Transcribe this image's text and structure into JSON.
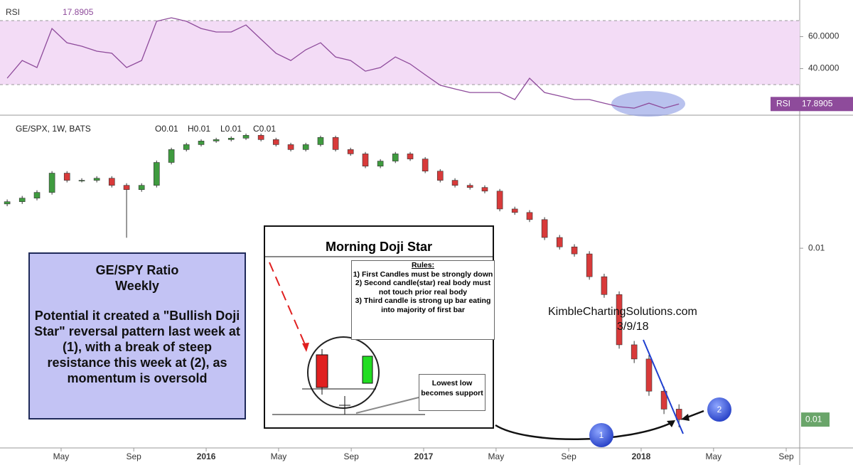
{
  "chart_data": [
    {
      "type": "line",
      "title": "RSI",
      "x": [
        2015.085,
        2015.154,
        2015.222,
        2015.291,
        2015.36,
        2015.428,
        2015.497,
        2015.566,
        2015.634,
        2015.703,
        2015.772,
        2015.84,
        2015.909,
        2015.977,
        2016.046,
        2016.115,
        2016.183,
        2016.252,
        2016.321,
        2016.389,
        2016.458,
        2016.526,
        2016.595,
        2016.664,
        2016.732,
        2016.801,
        2016.87,
        2016.938,
        2017.007,
        2017.076,
        2017.144,
        2017.213,
        2017.281,
        2017.35,
        2017.419,
        2017.487,
        2017.556,
        2017.625,
        2017.693,
        2017.762,
        2017.83,
        2017.899,
        2017.968,
        2018.036,
        2018.105,
        2018.174
      ],
      "series": [
        {
          "name": "RSI",
          "color": "#8e4b9b",
          "values": [
            34.0,
            45.1,
            40.7,
            65.1,
            56.2,
            54.0,
            50.9,
            49.6,
            40.7,
            45.1,
            69.6,
            71.8,
            69.6,
            65.1,
            62.9,
            62.9,
            67.3,
            58.4,
            49.6,
            45.1,
            51.8,
            56.2,
            47.3,
            45.1,
            38.4,
            40.7,
            47.3,
            42.9,
            36.2,
            29.6,
            27.3,
            25.1,
            25.1,
            25.1,
            20.7,
            34.0,
            25.1,
            22.9,
            20.7,
            20.7,
            18.4,
            16.2,
            15.3,
            18.4,
            15.3,
            17.8905
          ]
        }
      ],
      "xlim": [
        2015.052,
        2018.729
      ],
      "ylim": [
        11.8,
        82.9
      ],
      "yticks": [
        {
          "value": 60,
          "label": "60.0000"
        },
        {
          "value": 40,
          "label": "40.0000"
        }
      ],
      "bands": [
        30,
        70
      ],
      "band_color": "#f3dcf6"
    },
    {
      "type": "candlestick",
      "title": "GE/SPX, 1W, BATS",
      "legend_values": [
        "O0.01",
        "H0.01",
        "L0.01",
        "C0.01"
      ],
      "x": [
        2015.085,
        2015.154,
        2015.222,
        2015.291,
        2015.36,
        2015.428,
        2015.497,
        2015.566,
        2015.634,
        2015.703,
        2015.772,
        2015.84,
        2015.909,
        2015.977,
        2016.046,
        2016.115,
        2016.183,
        2016.252,
        2016.321,
        2016.389,
        2016.458,
        2016.526,
        2016.595,
        2016.664,
        2016.732,
        2016.801,
        2016.87,
        2016.938,
        2017.007,
        2017.076,
        2017.144,
        2017.213,
        2017.281,
        2017.35,
        2017.419,
        2017.487,
        2017.556,
        2017.625,
        2017.693,
        2017.762,
        2017.83,
        2017.899,
        2017.968,
        2018.036,
        2018.105,
        2018.174
      ],
      "open": [
        0.0118,
        0.0119,
        0.01206,
        0.01232,
        0.01324,
        0.01289,
        0.01289,
        0.01299,
        0.01265,
        0.01245,
        0.01265,
        0.01378,
        0.01446,
        0.01473,
        0.01493,
        0.01501,
        0.01509,
        0.01525,
        0.01501,
        0.01473,
        0.01446,
        0.01473,
        0.01513,
        0.01446,
        0.01423,
        0.01359,
        0.01385,
        0.01423,
        0.01396,
        0.01334,
        0.01289,
        0.01265,
        0.01255,
        0.01238,
        0.01158,
        0.01143,
        0.01113,
        0.01041,
        0.01005,
        0.00979,
        0.00899,
        0.00841,
        0.00697,
        0.00661,
        0.00586,
        0.00548
      ],
      "high": [
        0.012,
        0.01216,
        0.01242,
        0.01334,
        0.01334,
        0.01299,
        0.01309,
        0.01309,
        0.01275,
        0.01275,
        0.01388,
        0.01456,
        0.01483,
        0.01503,
        0.01511,
        0.01519,
        0.01535,
        0.01535,
        0.01511,
        0.01483,
        0.01483,
        0.01523,
        0.01523,
        0.01456,
        0.01433,
        0.01395,
        0.01433,
        0.01433,
        0.01406,
        0.01344,
        0.01299,
        0.01275,
        0.01265,
        0.01248,
        0.01168,
        0.01153,
        0.01123,
        0.01051,
        0.01015,
        0.00989,
        0.00909,
        0.00851,
        0.00707,
        0.00671,
        0.00596,
        0.00558
      ],
      "low": [
        0.0117,
        0.0118,
        0.01196,
        0.01222,
        0.01279,
        0.01279,
        0.01279,
        0.01255,
        0.0104,
        0.01235,
        0.01255,
        0.01368,
        0.01436,
        0.01463,
        0.01483,
        0.01491,
        0.01499,
        0.01491,
        0.01463,
        0.01436,
        0.01436,
        0.01463,
        0.01436,
        0.01413,
        0.01349,
        0.01349,
        0.01375,
        0.01386,
        0.01324,
        0.01279,
        0.01255,
        0.01245,
        0.01228,
        0.01148,
        0.01133,
        0.01103,
        0.01031,
        0.00995,
        0.00969,
        0.00889,
        0.00831,
        0.00687,
        0.00651,
        0.00576,
        0.00538,
        0.00512
      ],
      "close": [
        0.0119,
        0.01206,
        0.01232,
        0.01324,
        0.01289,
        0.01289,
        0.01299,
        0.01265,
        0.01245,
        0.01265,
        0.01378,
        0.01446,
        0.01473,
        0.01493,
        0.01501,
        0.01509,
        0.01525,
        0.01501,
        0.01473,
        0.01446,
        0.01473,
        0.01513,
        0.01446,
        0.01423,
        0.01359,
        0.01385,
        0.01423,
        0.01396,
        0.01334,
        0.01289,
        0.01265,
        0.01255,
        0.01238,
        0.01158,
        0.01143,
        0.01113,
        0.01041,
        0.01005,
        0.00979,
        0.00899,
        0.00841,
        0.00697,
        0.00661,
        0.00586,
        0.00548,
        0.00527
      ],
      "up_color": "#3f9b3f",
      "down_color": "#d83a3a",
      "xlim": [
        2015.052,
        2018.729
      ],
      "ylim": [
        0.00474,
        0.0164
      ],
      "log_scale": true,
      "yticks": [
        0.01
      ],
      "last_label": "0.01",
      "xticks": [
        {
          "value": 2015.333,
          "label": "May"
        },
        {
          "value": 2015.667,
          "label": "Sep"
        },
        2016,
        {
          "value": 2016.333,
          "label": "May"
        },
        {
          "value": 2016.667,
          "label": "Sep"
        },
        2017,
        {
          "value": 2017.333,
          "label": "May"
        },
        {
          "value": 2017.667,
          "label": "Sep"
        },
        2018,
        {
          "value": 2018.333,
          "label": "May"
        },
        {
          "value": 2018.667,
          "label": "Sep"
        }
      ],
      "annotations": {
        "note": {
          "heading": [
            "GE/SPY Ratio",
            "Weekly"
          ],
          "text": "Potential it created a \"Bullish Doji Star\" reversal pattern last week at (1), with a break of steep resistance this week at (2), as momentum is oversold"
        },
        "inset": {
          "title": "Morning Doji Star",
          "rules_heading": "Rules:",
          "rules": [
            "1)  First Candles must be strongly down",
            "2)  Second candle(star) real body must not touch prior real body",
            "3)  Third candle is strong up bar eating into majority of first bar"
          ],
          "support": "Lowest low becomes support"
        },
        "source": "KimbleChartingSolutions.com",
        "date": "3/9/18",
        "markers": [
          "1",
          "2"
        ]
      }
    }
  ]
}
